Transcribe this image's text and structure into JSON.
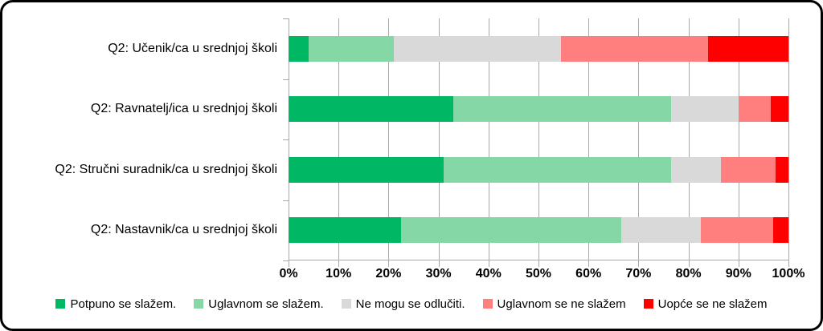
{
  "chart_data": {
    "type": "bar",
    "orientation": "horizontal",
    "stacked": true,
    "title": "",
    "xlabel": "",
    "ylabel": "",
    "xlim": [
      0,
      100
    ],
    "grid": true,
    "legend_position": "bottom",
    "categories": [
      "Q2: Učenik/ca u srednjoj školi",
      "Q2: Ravnatelj/ica u srednjoj školi",
      "Q2: Stručni suradnik/ca u srednjoj školi",
      "Q2: Nastavnik/ca u srednjoj školi"
    ],
    "x_ticks": [
      "0%",
      "10%",
      "20%",
      "30%",
      "40%",
      "50%",
      "60%",
      "70%",
      "80%",
      "90%",
      "100%"
    ],
    "series": [
      {
        "name": "Potpuno se slažem.",
        "color": "#00b763",
        "values": [
          4,
          33,
          31,
          22.5
        ]
      },
      {
        "name": "Uglavnom se slažem.",
        "color": "#85d8a6",
        "values": [
          17,
          43.5,
          45.5,
          44
        ]
      },
      {
        "name": "Ne mogu se odlučiti.",
        "color": "#d9d9d9",
        "values": [
          33.5,
          13.5,
          10,
          16
        ]
      },
      {
        "name": "Uglavnom se ne slažem",
        "color": "#ff7f7f",
        "values": [
          29.5,
          6.5,
          11,
          14.5
        ]
      },
      {
        "name": "Uopće se ne slažem",
        "color": "#ff0000",
        "values": [
          16,
          3.5,
          2.5,
          3
        ]
      }
    ],
    "colors": {
      "gridline": "#a8a8a8",
      "text": "#000000"
    }
  }
}
